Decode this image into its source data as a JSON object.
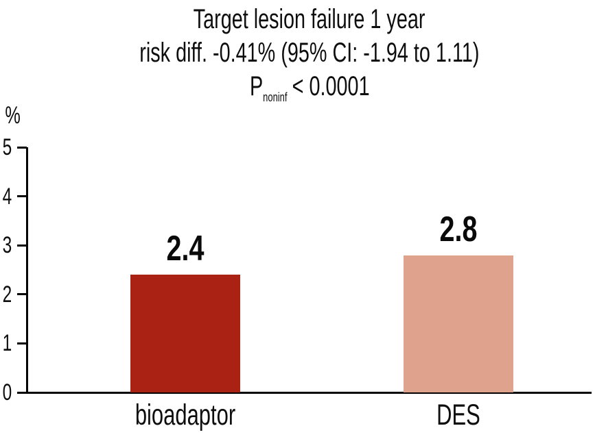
{
  "figure": {
    "background": "#ffffff",
    "text_color": "#0e0e0e",
    "axis_color": "#000000"
  },
  "chart_data": {
    "type": "bar",
    "title": "Target lesion failure 1 year",
    "subtitle": "risk diff. -0.41% (95% CI: -1.94 to 1.11)",
    "p_line": {
      "p": "P",
      "sub": "noninf",
      "rest": "< 0.0001"
    },
    "ylabel": "%",
    "ylim": [
      0,
      5
    ],
    "yticks": [
      0,
      1,
      2,
      3,
      4,
      5
    ],
    "categories": [
      "bioadaptor",
      "DES"
    ],
    "values": [
      2.4,
      2.8
    ],
    "value_labels": [
      "2.4",
      "2.8"
    ],
    "bar_colors": [
      "#AA2214",
      "#DFA28D"
    ],
    "grid": false,
    "legend_position": "none"
  }
}
